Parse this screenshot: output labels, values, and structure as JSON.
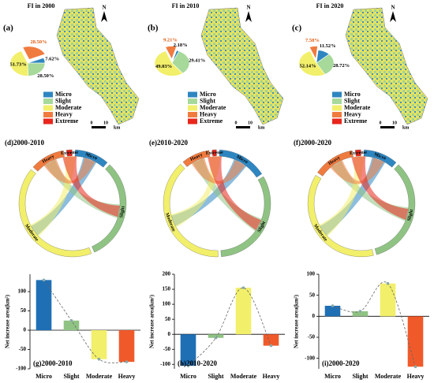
{
  "chart_data": [
    {
      "type": "pie",
      "title": "FI in 2000",
      "panel": "(a)",
      "north": "N",
      "categories": [
        "Heavy",
        "Micro",
        "Slight",
        "Moderate"
      ],
      "values": [
        28.5,
        7.62,
        28.5,
        51.73
      ],
      "value_labels": [
        "28.50%",
        "7.62%",
        "28.50%",
        "51.73%"
      ],
      "colors": [
        "#f07b3f",
        "#2e86c1",
        "#a6d99a",
        "#f2ef6a"
      ],
      "legend": [
        {
          "name": "Micro",
          "color": "#2e86c1"
        },
        {
          "name": "Slight",
          "color": "#a6d99a"
        },
        {
          "name": "Moderate",
          "color": "#f2ef6a"
        },
        {
          "name": "Heavy",
          "color": "#f07b3f"
        },
        {
          "name": "Extreme",
          "color": "#e8261c"
        }
      ],
      "scale": {
        "ticks": [
          0,
          10
        ],
        "unit": "km"
      }
    },
    {
      "type": "pie",
      "title": "FI in 2010",
      "panel": "(b)",
      "north": "N",
      "categories": [
        "Heavy",
        "Micro",
        "Slight",
        "Moderate"
      ],
      "values": [
        9.21,
        2.18,
        29.41,
        49.03
      ],
      "value_labels": [
        "9.21%",
        "2.18%",
        "29.41%",
        "49.03%"
      ],
      "colors": [
        "#f07b3f",
        "#2e86c1",
        "#a6d99a",
        "#f2ef6a"
      ],
      "legend": [
        {
          "name": "Micro",
          "color": "#2e86c1"
        },
        {
          "name": "Slight",
          "color": "#a6d99a"
        },
        {
          "name": "Moderate",
          "color": "#f2ef6a"
        },
        {
          "name": "Heavy",
          "color": "#f07b3f"
        },
        {
          "name": "Extreme",
          "color": "#e8261c"
        }
      ],
      "scale": {
        "ticks": [
          0,
          10
        ],
        "unit": "km"
      }
    },
    {
      "type": "pie",
      "title": "FI in 2020",
      "panel": "(c)",
      "north": "N",
      "categories": [
        "Heavy",
        "Micro",
        "Slight",
        "Moderate"
      ],
      "values": [
        7.58,
        11.52,
        28.72,
        52.14
      ],
      "value_labels": [
        "7.58%",
        "11.52%",
        "28.72%",
        "52.14%"
      ],
      "colors": [
        "#f07b3f",
        "#2e86c1",
        "#a6d99a",
        "#f2ef6a"
      ],
      "legend": [
        {
          "name": "Micro",
          "color": "#2e86c1"
        },
        {
          "name": "Slight",
          "color": "#a6d99a"
        },
        {
          "name": "Moderate",
          "color": "#f2ef6a"
        },
        {
          "name": "Heavy",
          "color": "#f07b3f"
        },
        {
          "name": "Extreme",
          "color": "#e8261c"
        }
      ],
      "scale": {
        "ticks": [
          0,
          10
        ],
        "unit": "km"
      }
    },
    {
      "type": "chord",
      "title": "(d)2000-2010",
      "categories": [
        "Micro",
        "Slight",
        "Moderate",
        "Heavy",
        "Extreme"
      ],
      "values": [
        250,
        750,
        1000,
        250,
        40
      ],
      "colors": [
        "#2e86c1",
        "#8fc383",
        "#f2ef6a",
        "#f07b3f",
        "#e8261c"
      ]
    },
    {
      "type": "chord",
      "title": "(e)2010-2020",
      "categories": [
        "Micro",
        "Slight",
        "Moderate",
        "Heavy",
        "Extreme"
      ],
      "values": [
        350,
        750,
        900,
        200,
        30
      ],
      "colors": [
        "#2e86c1",
        "#8fc383",
        "#f2ef6a",
        "#f07b3f",
        "#e8261c"
      ]
    },
    {
      "type": "chord",
      "title": "(f)2000-2020",
      "categories": [
        "Micro",
        "Slight",
        "Moderate",
        "Heavy",
        "Extreme"
      ],
      "values": [
        250,
        800,
        900,
        300,
        40
      ],
      "colors": [
        "#2e86c1",
        "#8fc383",
        "#f2ef6a",
        "#f07b3f",
        "#e8261c"
      ]
    },
    {
      "type": "bar",
      "title": "(g)2000-2010",
      "ylabel": "Net increase area(km²)",
      "categories": [
        "Micro",
        "Slight",
        "Moderate",
        "Heavy"
      ],
      "values": [
        130,
        25,
        -75,
        -82
      ],
      "colors": [
        "#1f6fb5",
        "#8fc383",
        "#f2ef6a",
        "#f05a2a"
      ],
      "ylim": [
        -100,
        145
      ],
      "yticks": [
        -100,
        -50,
        0,
        50,
        100
      ]
    },
    {
      "type": "bar",
      "title": "(h)2010-2020",
      "ylabel": "Net increase area(km²)",
      "categories": [
        "Micro",
        "Slight",
        "Moderate",
        "Heavy"
      ],
      "values": [
        -105,
        -12,
        155,
        -38
      ],
      "colors": [
        "#1f6fb5",
        "#8fc383",
        "#f2ef6a",
        "#f05a2a"
      ],
      "ylim": [
        -115,
        200
      ],
      "yticks": [
        -100,
        -50,
        0,
        50,
        100,
        150,
        200
      ]
    },
    {
      "type": "bar",
      "title": "(i)2000-2020",
      "ylabel": "Net increase area(km²)",
      "categories": [
        "Micro",
        "Slight",
        "Moderate",
        "Heavy"
      ],
      "values": [
        25,
        12,
        78,
        -120
      ],
      "colors": [
        "#1f6fb5",
        "#8fc383",
        "#f2ef6a",
        "#f05a2a"
      ],
      "ylim": [
        -125,
        100
      ],
      "yticks": [
        -100,
        -50,
        0,
        50,
        100
      ]
    }
  ]
}
